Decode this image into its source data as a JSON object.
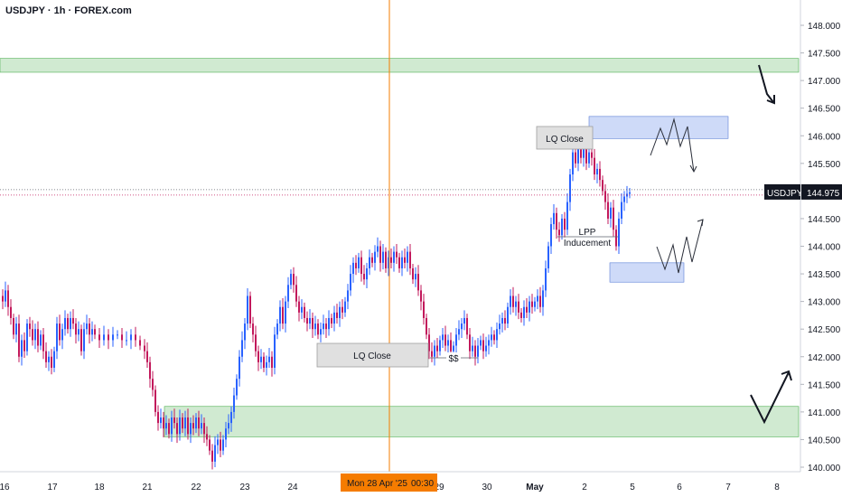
{
  "header": {
    "title": "USDJPY · 1h · FOREX.com"
  },
  "colors": {
    "up": "#2962ff",
    "down": "#c2185b",
    "zone_green": "#c8e6c9",
    "zone_green_border": "#4caf50",
    "zone_blue": "#c5d4f7",
    "zone_blue_border": "#5b7fd6",
    "cursor": "#f57c00",
    "label_bg": "#e0e0e0"
  },
  "chart_data": {
    "type": "candlestick",
    "symbol": "USDJPY",
    "timeframe": "1h",
    "y_axis": {
      "ylim": [
        139.9,
        148.4
      ],
      "ticks": [
        "148.000",
        "147.500",
        "147.000",
        "146.500",
        "146.000",
        "145.500",
        "145.000",
        "144.500",
        "144.000",
        "143.500",
        "143.000",
        "142.500",
        "142.000",
        "141.500",
        "141.000",
        "140.500",
        "140.000"
      ]
    },
    "x_axis": {
      "labels": [
        "16",
        "17",
        "18",
        "21",
        "22",
        "23",
        "24",
        "",
        "29",
        "30",
        "May",
        "2",
        "5",
        "6",
        "7",
        "8"
      ]
    },
    "last_price": {
      "symbol": "USDJPY",
      "value": "144.975"
    },
    "crosshair_label": {
      "date": "Mon 28 Apr '25",
      "time": "00:30"
    },
    "zones": [
      {
        "kind": "green",
        "top": 147.4,
        "bottom": 147.15
      },
      {
        "kind": "green",
        "top": 141.1,
        "bottom": 140.55
      },
      {
        "kind": "blue",
        "top": 146.35,
        "bottom": 145.95
      },
      {
        "kind": "blue",
        "top": 143.7,
        "bottom": 143.35
      }
    ],
    "annotations": [
      {
        "id": "lq-close-top",
        "text": "LQ Close"
      },
      {
        "id": "lq-close-bottom",
        "text": "LQ Close"
      },
      {
        "id": "lpp",
        "text": "LPP"
      },
      {
        "id": "inducement",
        "text": "Inducement"
      },
      {
        "id": "dollars",
        "text": "$$"
      }
    ],
    "candles_path": [
      [
        0,
        143.1
      ],
      [
        3,
        143.0
      ],
      [
        6,
        143.2
      ],
      [
        9,
        142.9
      ],
      [
        12,
        142.7
      ],
      [
        15,
        142.4
      ],
      [
        18,
        142.6
      ],
      [
        21,
        142.0
      ],
      [
        24,
        142.3
      ],
      [
        27,
        142.1
      ],
      [
        30,
        142.6
      ],
      [
        33,
        142.5
      ],
      [
        36,
        142.3
      ],
      [
        39,
        142.5
      ],
      [
        42,
        142.2
      ],
      [
        45,
        142.4
      ],
      [
        48,
        142.1
      ],
      [
        51,
        141.9
      ],
      [
        54,
        142.0
      ],
      [
        57,
        141.8
      ],
      [
        60,
        142.1
      ],
      [
        63,
        142.6
      ],
      [
        66,
        142.3
      ],
      [
        69,
        142.5
      ],
      [
        72,
        142.7
      ],
      [
        75,
        142.5
      ],
      [
        78,
        142.7
      ],
      [
        81,
        142.6
      ],
      [
        84,
        142.4
      ],
      [
        87,
        142.5
      ],
      [
        90,
        142.1
      ],
      [
        93,
        142.5
      ],
      [
        96,
        142.6
      ],
      [
        99,
        142.4
      ],
      [
        102,
        142.5
      ],
      [
        105,
        142.4
      ],
      [
        110,
        142.3
      ],
      [
        115,
        142.4
      ],
      [
        120,
        142.3
      ],
      [
        125,
        142.4
      ],
      [
        130,
        142.4
      ],
      [
        135,
        142.3
      ],
      [
        140,
        142.3
      ],
      [
        145,
        142.4
      ],
      [
        150,
        142.3
      ],
      [
        155,
        142.2
      ],
      [
        160,
        142.1
      ],
      [
        163,
        141.9
      ],
      [
        166,
        141.6
      ],
      [
        169,
        141.4
      ],
      [
        172,
        141.0
      ],
      [
        175,
        140.8
      ],
      [
        178,
        140.9
      ],
      [
        181,
        140.7
      ],
      [
        184,
        140.8
      ],
      [
        187,
        140.6
      ],
      [
        190,
        140.9
      ],
      [
        193,
        140.8
      ],
      [
        196,
        140.6
      ],
      [
        199,
        140.9
      ],
      [
        202,
        140.7
      ],
      [
        205,
        140.9
      ],
      [
        208,
        140.6
      ],
      [
        211,
        140.8
      ],
      [
        214,
        140.7
      ],
      [
        217,
        140.9
      ],
      [
        220,
        140.7
      ],
      [
        223,
        140.8
      ],
      [
        226,
        140.6
      ],
      [
        229,
        140.5
      ],
      [
        232,
        140.3
      ],
      [
        235,
        140.1
      ],
      [
        238,
        140.4
      ],
      [
        241,
        140.5
      ],
      [
        244,
        140.3
      ],
      [
        247,
        140.5
      ],
      [
        250,
        140.7
      ],
      [
        253,
        140.8
      ],
      [
        256,
        141.0
      ],
      [
        259,
        141.3
      ],
      [
        262,
        141.6
      ],
      [
        265,
        142.0
      ],
      [
        268,
        142.3
      ],
      [
        271,
        142.6
      ],
      [
        274,
        143.1
      ],
      [
        277,
        142.6
      ],
      [
        280,
        142.4
      ],
      [
        283,
        142.1
      ],
      [
        286,
        141.9
      ],
      [
        289,
        142.0
      ],
      [
        292,
        141.8
      ],
      [
        295,
        141.9
      ],
      [
        298,
        142.0
      ],
      [
        301,
        141.8
      ],
      [
        304,
        142.4
      ],
      [
        307,
        142.6
      ],
      [
        310,
        142.9
      ],
      [
        313,
        142.6
      ],
      [
        316,
        143.0
      ],
      [
        319,
        143.3
      ],
      [
        322,
        143.5
      ],
      [
        325,
        143.3
      ],
      [
        328,
        143.0
      ],
      [
        331,
        142.8
      ],
      [
        334,
        142.9
      ],
      [
        337,
        142.7
      ],
      [
        340,
        142.6
      ],
      [
        343,
        142.7
      ],
      [
        346,
        142.5
      ],
      [
        349,
        142.6
      ],
      [
        352,
        142.4
      ],
      [
        355,
        142.5
      ],
      [
        358,
        142.6
      ],
      [
        361,
        142.5
      ],
      [
        364,
        142.7
      ],
      [
        367,
        142.6
      ],
      [
        370,
        142.8
      ],
      [
        373,
        142.7
      ],
      [
        376,
        142.9
      ],
      [
        379,
        142.8
      ],
      [
        382,
        143.0
      ],
      [
        385,
        143.2
      ],
      [
        388,
        143.5
      ],
      [
        391,
        143.7
      ],
      [
        394,
        143.6
      ],
      [
        397,
        143.8
      ],
      [
        400,
        143.5
      ],
      [
        403,
        143.4
      ],
      [
        406,
        143.6
      ],
      [
        409,
        143.8
      ],
      [
        412,
        143.7
      ],
      [
        415,
        143.9
      ],
      [
        418,
        144.0
      ],
      [
        421,
        143.7
      ],
      [
        424,
        143.9
      ],
      [
        427,
        143.6
      ],
      [
        430,
        143.8
      ],
      [
        433,
        143.7
      ],
      [
        436,
        143.9
      ],
      [
        439,
        143.8
      ],
      [
        442,
        143.6
      ],
      [
        445,
        143.8
      ],
      [
        448,
        143.7
      ],
      [
        451,
        143.9
      ],
      [
        454,
        143.6
      ],
      [
        457,
        143.4
      ],
      [
        460,
        143.5
      ],
      [
        463,
        143.2
      ],
      [
        466,
        143.0
      ],
      [
        469,
        142.7
      ],
      [
        472,
        142.4
      ],
      [
        475,
        142.1
      ],
      [
        478,
        142.0
      ],
      [
        481,
        142.2
      ],
      [
        484,
        142.1
      ],
      [
        487,
        142.3
      ],
      [
        490,
        142.4
      ],
      [
        493,
        142.2
      ],
      [
        496,
        142.3
      ],
      [
        499,
        142.1
      ],
      [
        502,
        142.2
      ],
      [
        505,
        142.4
      ],
      [
        508,
        142.5
      ],
      [
        511,
        142.6
      ],
      [
        514,
        142.7
      ],
      [
        517,
        142.4
      ],
      [
        520,
        142.1
      ],
      [
        523,
        142.2
      ],
      [
        526,
        142.0
      ],
      [
        529,
        142.2
      ],
      [
        532,
        142.3
      ],
      [
        535,
        142.1
      ],
      [
        538,
        142.2
      ],
      [
        541,
        142.3
      ],
      [
        544,
        142.4
      ],
      [
        547,
        142.3
      ],
      [
        550,
        142.5
      ],
      [
        553,
        142.6
      ],
      [
        556,
        142.7
      ],
      [
        559,
        142.6
      ],
      [
        562,
        142.9
      ],
      [
        565,
        143.1
      ],
      [
        568,
        142.9
      ],
      [
        571,
        143.0
      ],
      [
        574,
        142.8
      ],
      [
        577,
        142.7
      ],
      [
        580,
        142.9
      ],
      [
        583,
        142.8
      ],
      [
        586,
        143.0
      ],
      [
        589,
        142.9
      ],
      [
        592,
        143.0
      ],
      [
        595,
        143.1
      ],
      [
        598,
        142.9
      ],
      [
        601,
        143.2
      ],
      [
        604,
        143.6
      ],
      [
        607,
        144.0
      ],
      [
        610,
        144.4
      ],
      [
        613,
        144.6
      ],
      [
        616,
        144.3
      ],
      [
        619,
        144.2
      ],
      [
        622,
        144.5
      ],
      [
        625,
        144.3
      ],
      [
        628,
        144.8
      ],
      [
        631,
        145.3
      ],
      [
        634,
        145.7
      ],
      [
        637,
        145.5
      ],
      [
        640,
        145.8
      ],
      [
        643,
        145.6
      ],
      [
        646,
        145.9
      ],
      [
        649,
        145.5
      ],
      [
        652,
        145.7
      ],
      [
        655,
        145.6
      ],
      [
        658,
        145.3
      ],
      [
        661,
        145.4
      ],
      [
        664,
        145.2
      ],
      [
        667,
        145.0
      ],
      [
        670,
        144.8
      ],
      [
        673,
        144.5
      ],
      [
        676,
        144.7
      ],
      [
        679,
        144.3
      ],
      [
        682,
        144.0
      ],
      [
        685,
        144.5
      ],
      [
        688,
        144.8
      ],
      [
        691,
        144.9
      ],
      [
        694,
        144.95
      ],
      [
        697,
        144.975
      ]
    ]
  }
}
